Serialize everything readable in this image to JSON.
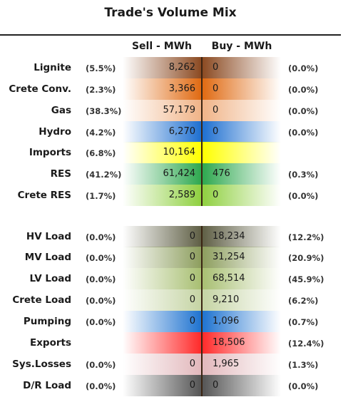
{
  "title": "Trade's Volume Mix",
  "headers": {
    "sell": "Sell - MWh",
    "buy": "Buy - MWh"
  },
  "rows": [
    {
      "label": "Lignite",
      "sell_pct": "(5.5%)",
      "sell": "8,262",
      "buy": "0",
      "buy_pct": "(0.0%)",
      "color": "#8b4a22"
    },
    {
      "label": "Crete Conv.",
      "sell_pct": "(2.3%)",
      "sell": "3,366",
      "buy": "0",
      "buy_pct": "(0.0%)",
      "color": "#e06a12"
    },
    {
      "label": "Gas",
      "sell_pct": "(38.3%)",
      "sell": "57,179",
      "buy": "0",
      "buy_pct": "(0.0%)",
      "color": "#f0b488"
    },
    {
      "label": "Hydro",
      "sell_pct": "(4.2%)",
      "sell": "6,270",
      "buy": "0",
      "buy_pct": "(0.0%)",
      "color": "#1e6fd0"
    },
    {
      "label": "Imports",
      "sell_pct": "(6.8%)",
      "sell": "10,164",
      "buy": "",
      "buy_pct": "",
      "color": "#ffff00"
    },
    {
      "label": "RES",
      "sell_pct": "(41.2%)",
      "sell": "61,424",
      "buy": "476",
      "buy_pct": "(0.3%)",
      "color": "#2ea84f"
    },
    {
      "label": "Crete RES",
      "sell_pct": "(1.7%)",
      "sell": "2,589",
      "buy": "0",
      "buy_pct": "(0.0%)",
      "color": "#8fd040"
    },
    {
      "label": "HV Load",
      "sell_pct": "(0.0%)",
      "sell": "0",
      "buy": "18,234",
      "buy_pct": "(12.2%)",
      "color": "#5f5f45"
    },
    {
      "label": "MV Load",
      "sell_pct": "(0.0%)",
      "sell": "0",
      "buy": "31,254",
      "buy_pct": "(20.9%)",
      "color": "#8d9e5e"
    },
    {
      "label": "LV Load",
      "sell_pct": "(0.0%)",
      "sell": "0",
      "buy": "68,514",
      "buy_pct": "(45.9%)",
      "color": "#a8bf72"
    },
    {
      "label": "Crete Load",
      "sell_pct": "(0.0%)",
      "sell": "0",
      "buy": "9,210",
      "buy_pct": "(6.2%)",
      "color": "#c5d4a4"
    },
    {
      "label": "Pumping",
      "sell_pct": "(0.0%)",
      "sell": "0",
      "buy": "1,096",
      "buy_pct": "(0.7%)",
      "color": "#1f73d0"
    },
    {
      "label": "Exports",
      "sell_pct": "",
      "sell": "",
      "buy": "18,506",
      "buy_pct": "(12.4%)",
      "color": "#ff2a2a"
    },
    {
      "label": "Sys.Losses",
      "sell_pct": "(0.0%)",
      "sell": "0",
      "buy": "1,965",
      "buy_pct": "(1.3%)",
      "color": "#e2b8bc"
    },
    {
      "label": "D/R Load",
      "sell_pct": "(0.0%)",
      "sell": "0",
      "buy": "0",
      "buy_pct": "(0.0%)",
      "color": "#555555"
    }
  ]
}
